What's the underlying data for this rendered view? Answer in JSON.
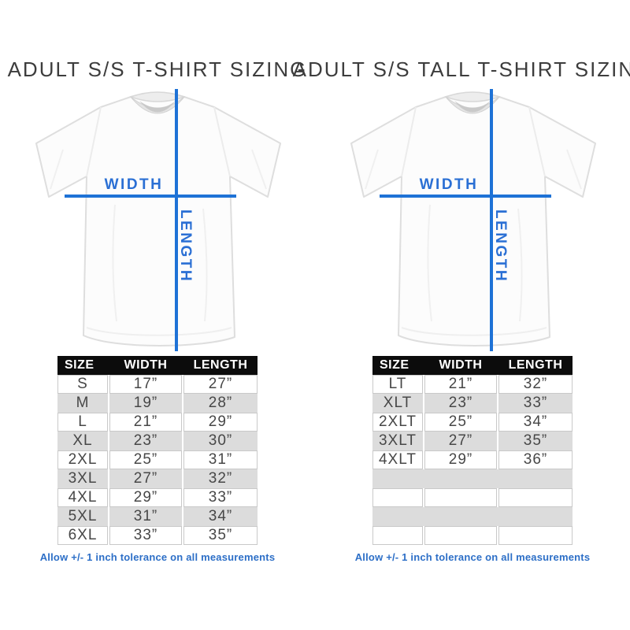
{
  "colors": {
    "measure_line_blue": "#1e72d6",
    "label_blue": "#2a6fd4",
    "note_blue": "#2d6fc7",
    "table_header_bg": "#0c0c0c",
    "table_row_gray": "#dcdcdc",
    "title_gray": "#3d3d3d"
  },
  "panels": [
    {
      "title": "ADULT S/S T-SHIRT SIZING",
      "diagram": {
        "width_label": "WIDTH",
        "length_label": "LENGTH"
      },
      "table": {
        "headers": [
          "SIZE",
          "WIDTH",
          "LENGTH"
        ],
        "rows": [
          {
            "cells": [
              "S",
              "17”",
              "27”"
            ]
          },
          {
            "cells": [
              "M",
              "19”",
              "28”"
            ]
          },
          {
            "cells": [
              "L",
              "21”",
              "29”"
            ]
          },
          {
            "cells": [
              "XL",
              "23”",
              "30”"
            ]
          },
          {
            "cells": [
              "2XL",
              "25”",
              "31”"
            ]
          },
          {
            "cells": [
              "3XL",
              "27”",
              "32”"
            ]
          },
          {
            "cells": [
              "4XL",
              "29”",
              "33”"
            ]
          },
          {
            "cells": [
              "5XL",
              "31”",
              "34”"
            ]
          },
          {
            "cells": [
              "6XL",
              "33”",
              "35”"
            ]
          }
        ]
      },
      "note": "Allow +/- 1 inch tolerance on all measurements"
    },
    {
      "title": "ADULT S/S TALL T-SHIRT SIZING",
      "diagram": {
        "width_label": "WIDTH",
        "length_label": "LENGTH"
      },
      "table": {
        "headers": [
          "SIZE",
          "WIDTH",
          "LENGTH"
        ],
        "rows": [
          {
            "cells": [
              "LT",
              "21”",
              "32”"
            ]
          },
          {
            "cells": [
              "XLT",
              "23”",
              "33”"
            ]
          },
          {
            "cells": [
              "2XLT",
              "25”",
              "34”"
            ]
          },
          {
            "cells": [
              "3XLT",
              "27”",
              "35”"
            ]
          },
          {
            "cells": [
              "4XLT",
              "29”",
              "36”"
            ]
          },
          {
            "cells": [
              "",
              "",
              ""
            ]
          },
          {
            "cells": [
              "",
              "",
              ""
            ]
          },
          {
            "cells": [
              "",
              "",
              ""
            ]
          },
          {
            "cells": [
              "",
              "",
              ""
            ]
          }
        ]
      },
      "note": "Allow +/- 1 inch tolerance on all measurements"
    }
  ]
}
